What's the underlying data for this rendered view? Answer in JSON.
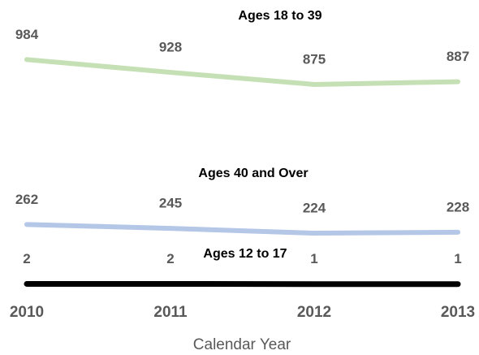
{
  "chart_data": {
    "type": "line",
    "x_label": "Calendar Year",
    "categories": [
      "2010",
      "2011",
      "2012",
      "2013"
    ],
    "series": [
      {
        "name": "Ages 18 to 39",
        "color": "#c5e0b4",
        "values": [
          984,
          928,
          875,
          887
        ]
      },
      {
        "name": "Ages 40 and Over",
        "color": "#b4c7e7",
        "values": [
          262,
          245,
          224,
          228
        ]
      },
      {
        "name": "Ages 12 to 17",
        "color": "#000000",
        "values": [
          2,
          2,
          1,
          1
        ]
      }
    ],
    "ylim": [
      0,
      1100
    ]
  }
}
